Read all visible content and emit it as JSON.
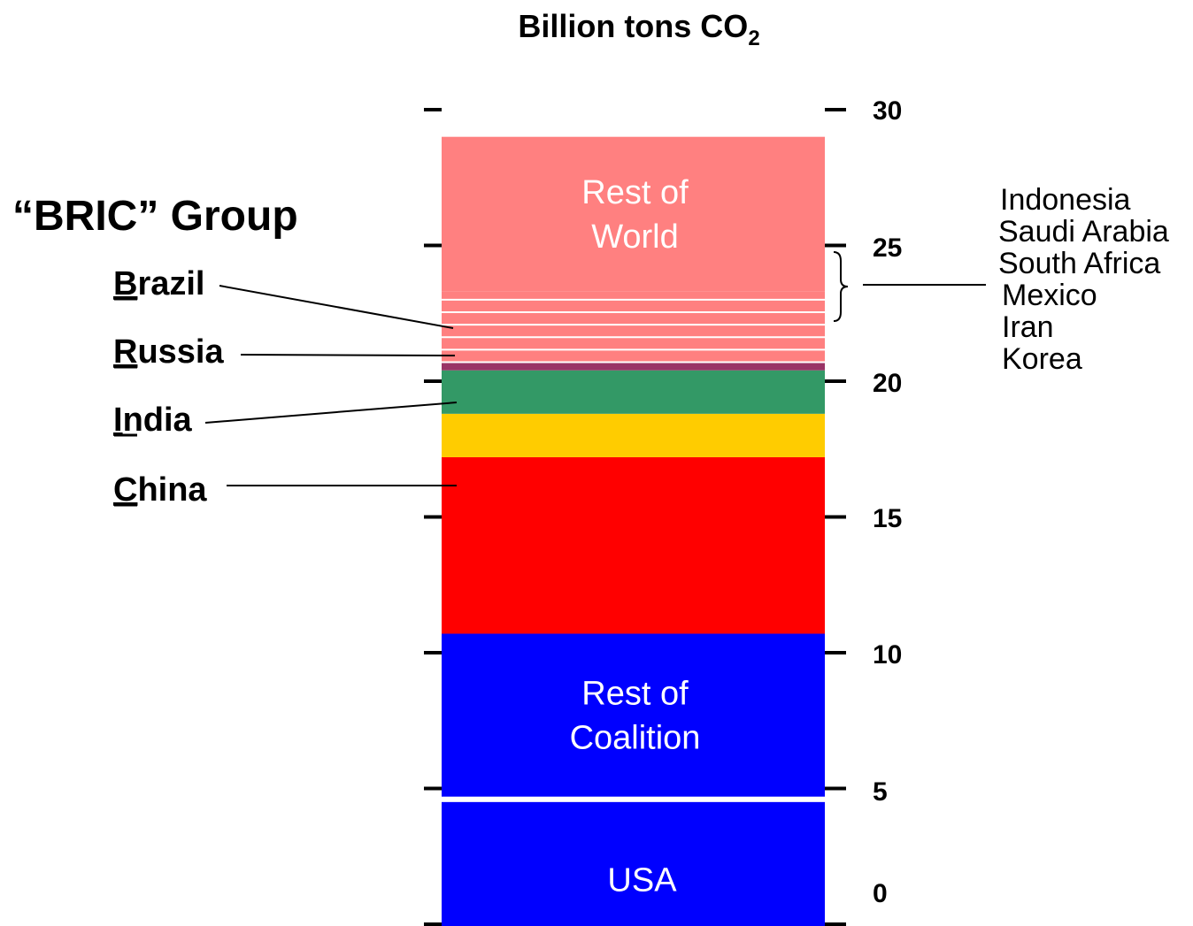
{
  "chart_data": {
    "type": "bar",
    "orientation": "vertical-stacked",
    "title": "Billion tons CO",
    "title_subscript": "2",
    "yticks": [
      "30",
      "25",
      "20",
      "15",
      "10",
      "5",
      "0"
    ],
    "ylim": [
      0,
      30
    ],
    "grid": false,
    "segments": [
      {
        "key": "usa",
        "label": "USA",
        "from": -1.2,
        "to": 4.5,
        "color": "#0000FF"
      },
      {
        "key": "rest_coalition",
        "label": [
          "Rest of",
          "Coalition"
        ],
        "from": 4.7,
        "to": 10.7,
        "color": "#0000FF"
      },
      {
        "key": "china",
        "label": "",
        "from": 10.7,
        "to": 17.2,
        "color": "#FF0000"
      },
      {
        "key": "india",
        "label": "",
        "from": 17.2,
        "to": 18.8,
        "color": "#FFCC00"
      },
      {
        "key": "russia",
        "label": "",
        "from": 18.8,
        "to": 20.4,
        "color": "#339966"
      },
      {
        "key": "brazil",
        "label": "",
        "from": 20.4,
        "to": 20.7,
        "color": "#993366"
      },
      {
        "key": "others",
        "label": "",
        "from": 20.7,
        "to": 23.3,
        "color": "#FF8080"
      },
      {
        "key": "rest_world",
        "label": [
          "Rest of",
          "World"
        ],
        "from": 23.3,
        "to": 29.0,
        "color": "#FF8080"
      }
    ],
    "others_stripes": [
      20.7,
      21.16,
      21.62,
      22.08,
      22.54,
      23.0
    ],
    "group_label": "“BRIC” Group",
    "bric": [
      {
        "initial": "B",
        "rest": "razil",
        "segment": "brazil"
      },
      {
        "initial": "R",
        "rest": "ussia",
        "segment": "russia"
      },
      {
        "initial": "I",
        "rest": "ndia",
        "segment": "india"
      },
      {
        "initial": "C",
        "rest": "hina",
        "segment": "china"
      }
    ],
    "others_list": [
      "Indonesia",
      "Saudi Arabia",
      "South Africa",
      "Mexico",
      "Iran",
      "Korea"
    ]
  }
}
